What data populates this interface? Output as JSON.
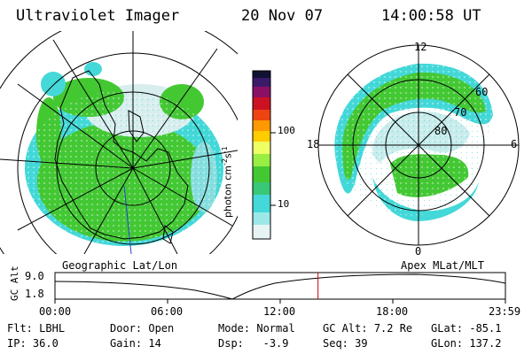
{
  "header": {
    "instrument": "Ultraviolet Imager",
    "date": "20 Nov 07",
    "time": "14:00:58 UT"
  },
  "colorbar": {
    "unit_label": "photon cm",
    "unit_sup1": "-2",
    "unit_s": "s",
    "unit_sup2": "-1",
    "ticks": [
      "100",
      "10"
    ]
  },
  "left_map": {
    "label": "Geographic Lat/Lon"
  },
  "right_map": {
    "label": "Apex MLat/MLT",
    "mlt_labels": {
      "top": "12",
      "bottom": "0",
      "left": "18",
      "right": "6"
    },
    "lat_labels": [
      "60",
      "70",
      "80"
    ]
  },
  "timeline": {
    "ylabel": "GC Alt",
    "ymax": "9.0",
    "ymin": "1.8",
    "ticks": [
      "00:00",
      "06:00",
      "12:00",
      "18:00",
      "23:59"
    ],
    "current_time_fraction": 0.584
  },
  "status": {
    "flt_label": "Flt:",
    "flt_value": "LBHL",
    "ip_label": "IP:",
    "ip_value": "36.0",
    "door_label": "Door:",
    "door_value": "Open",
    "gain_label": "Gain:",
    "gain_value": "14",
    "mode_label": "Mode:",
    "mode_value": "Normal",
    "dsp_label": "Dsp:",
    "dsp_value": "-3.9",
    "gcalt_label": "GC Alt:",
    "gcalt_value": "7.2 Re",
    "seq_label": "Seq:",
    "seq_value": "39",
    "glat_label": "GLat:",
    "glat_value": "-85.1",
    "glon_label": "GLon:",
    "glon_value": "137.2"
  },
  "colors": {
    "aurora_green": "#44c832",
    "aurora_cyan": "#44d8d8",
    "aurora_light": "#c8ecec",
    "time_marker": "#cc0000"
  }
}
